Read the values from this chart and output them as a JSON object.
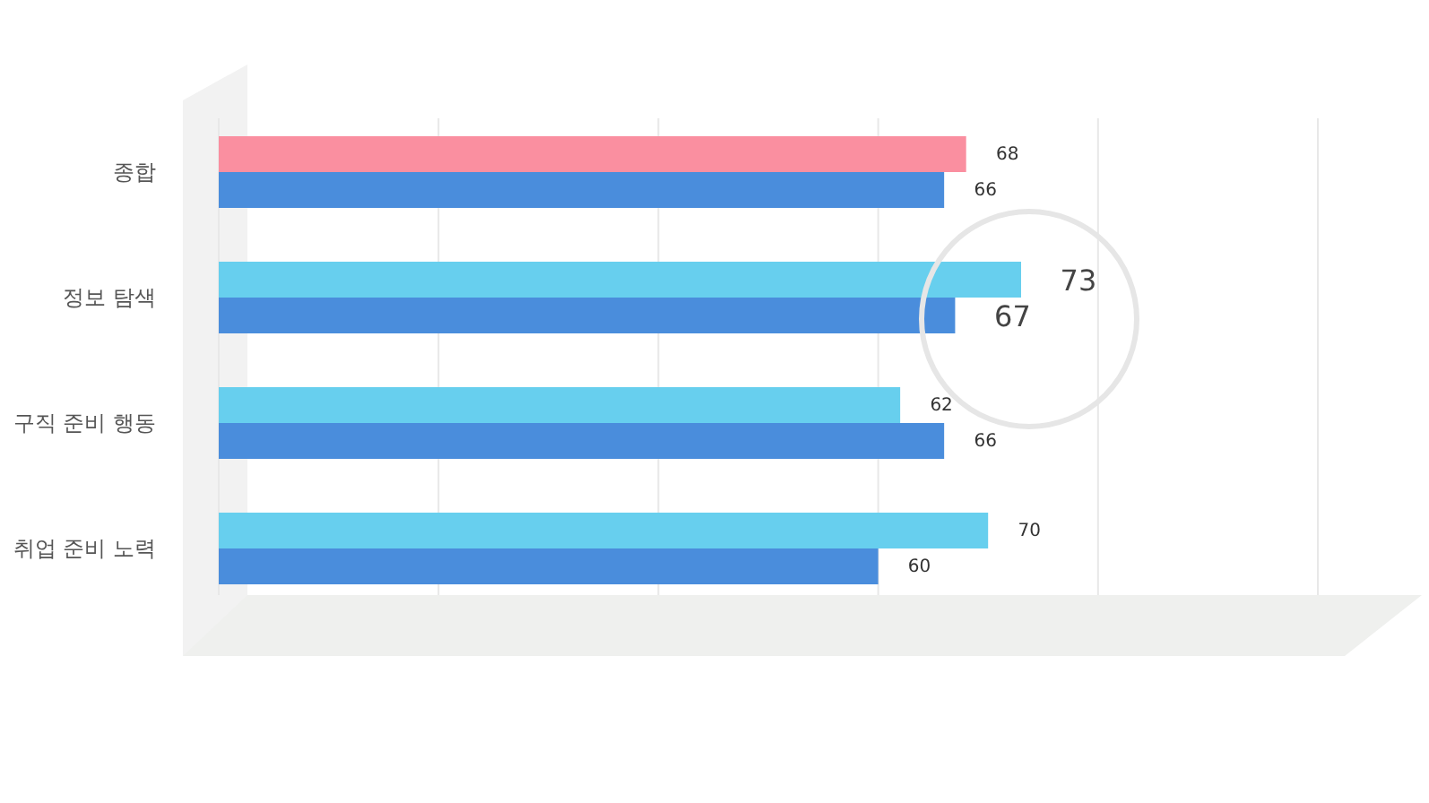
{
  "chart_data": {
    "type": "bar",
    "orientation": "horizontal",
    "categories": [
      "종합",
      "정보 탐색",
      "구직 준비 행동",
      "취업 준비 노력"
    ],
    "series": [
      {
        "colors": [
          "#fa8fa0",
          "#67cfee",
          "#67cfee",
          "#67cfee"
        ],
        "values": [
          68,
          73,
          62,
          70
        ]
      },
      {
        "color": "#4a8ddc",
        "values": [
          66,
          67,
          66,
          60
        ]
      }
    ],
    "xlim": [
      0,
      100
    ],
    "xticks": [
      {
        "value": 0,
        "label": null
      },
      {
        "value": 20,
        "label": null
      },
      {
        "value": 40,
        "label": null
      },
      {
        "value": 60,
        "label": null
      },
      {
        "value": 80,
        "label": null
      },
      {
        "value": 100,
        "label": null
      }
    ],
    "grid": "x",
    "data_labels": true,
    "tick_labels": "y"
  }
}
